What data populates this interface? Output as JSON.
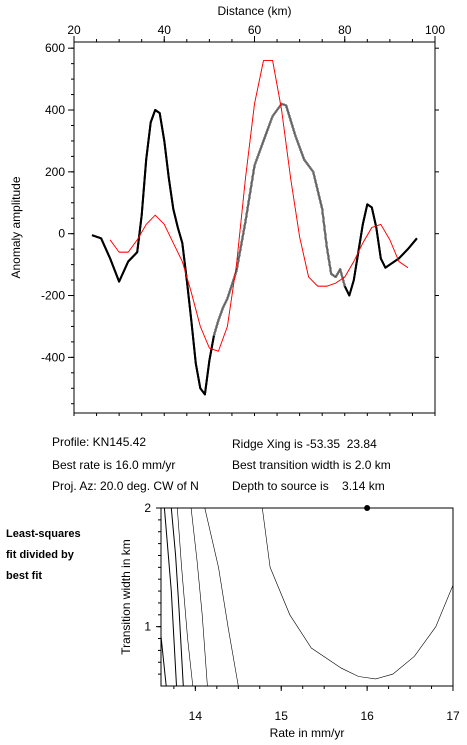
{
  "chart_data": [
    {
      "type": "line",
      "title": "",
      "xlabel": "Distance (km)",
      "ylabel": "Anomaly amplitude",
      "xlim": [
        20,
        100
      ],
      "ylim": [
        -580,
        620
      ],
      "xticks": [
        "20",
        "40",
        "60",
        "80",
        "100"
      ],
      "yticks": [
        "600",
        "400",
        "200",
        "0",
        "-200",
        "-400"
      ],
      "series": [
        {
          "role": "observed-thick",
          "color": "#000000",
          "x": [
            24,
            26,
            28,
            30,
            32,
            34,
            35,
            36,
            37,
            38,
            39,
            40,
            41,
            42,
            43,
            44,
            45,
            46,
            47,
            48,
            49,
            50,
            51,
            52,
            53,
            54,
            56,
            58,
            60,
            62,
            63,
            64,
            66,
            67,
            69,
            71,
            73,
            75,
            76,
            77,
            78,
            79,
            80,
            81,
            82,
            83,
            84,
            85,
            86,
            87,
            88,
            89,
            90,
            92,
            94,
            96
          ],
          "y": [
            -5,
            -15,
            -80,
            -155,
            -90,
            -60,
            60,
            240,
            360,
            400,
            390,
            300,
            180,
            80,
            20,
            -30,
            -150,
            -280,
            -420,
            -500,
            -520,
            -410,
            -330,
            -280,
            -240,
            -210,
            -120,
            40,
            220,
            300,
            340,
            380,
            420,
            415,
            320,
            240,
            200,
            80,
            -40,
            -130,
            -140,
            -115,
            -170,
            -200,
            -150,
            -60,
            30,
            95,
            85,
            20,
            -80,
            -110,
            -100,
            -80,
            -50,
            -15
          ]
        },
        {
          "role": "observed-thin-segment",
          "color": "#000000",
          "x": [
            51,
            52,
            53,
            54,
            56,
            58,
            60,
            62,
            63,
            64,
            66,
            67,
            69,
            71,
            73,
            75,
            76,
            77,
            78,
            79,
            80
          ],
          "y": [
            -330,
            -280,
            -240,
            -210,
            -120,
            40,
            220,
            300,
            340,
            380,
            420,
            415,
            320,
            240,
            200,
            80,
            -40,
            -130,
            -140,
            -115,
            -170
          ]
        },
        {
          "role": "model",
          "color": "#ff0000",
          "x": [
            28,
            30,
            32,
            34,
            36,
            38,
            40,
            42,
            44,
            46,
            48,
            50,
            52,
            54,
            56,
            58,
            60,
            62,
            64,
            66,
            68,
            70,
            72,
            74,
            76,
            78,
            80,
            82,
            84,
            86,
            88,
            90,
            92,
            94
          ],
          "y": [
            -20,
            -60,
            -60,
            -20,
            30,
            60,
            30,
            -30,
            -90,
            -190,
            -300,
            -370,
            -380,
            -300,
            -100,
            180,
            420,
            560,
            560,
            400,
            180,
            -10,
            -140,
            -170,
            -170,
            -160,
            -140,
            -90,
            -30,
            20,
            30,
            -20,
            -90,
            -110
          ]
        }
      ]
    },
    {
      "type": "contour",
      "title": "",
      "xlabel": "Rate in mm/yr",
      "ylabel": "Transition width in km",
      "xlim": [
        13.6,
        17
      ],
      "ylim": [
        0.5,
        2
      ],
      "xticks": [
        "14",
        "15",
        "16",
        "17"
      ],
      "yticks": [
        "1",
        "2"
      ],
      "best_fit": {
        "x": 16.0,
        "y": 2.0
      },
      "contours": [
        {
          "x": [
            13.6,
            13.66
          ],
          "y": [
            0.92,
            0.5
          ]
        },
        {
          "x": [
            13.64,
            13.72,
            13.78
          ],
          "y": [
            2.0,
            1.3,
            0.5
          ]
        },
        {
          "x": [
            13.72,
            13.77,
            13.81,
            13.86
          ],
          "y": [
            2.0,
            1.6,
            1.15,
            0.5
          ]
        },
        {
          "x": [
            13.79,
            13.84,
            13.91,
            13.97
          ],
          "y": [
            2.0,
            1.5,
            0.9,
            0.5
          ]
        },
        {
          "x": [
            13.95,
            14.02,
            14.08,
            14.14
          ],
          "y": [
            2.0,
            1.55,
            1.1,
            0.5
          ]
        },
        {
          "x": [
            14.11,
            14.27,
            14.38,
            14.5
          ],
          "y": [
            2.0,
            1.5,
            1.0,
            0.5
          ]
        },
        {
          "x": [
            14.78,
            14.87,
            15.1,
            15.35,
            15.7,
            15.9,
            16.1,
            16.3,
            16.55,
            16.8,
            17.0
          ],
          "y": [
            2.0,
            1.5,
            1.1,
            0.82,
            0.65,
            0.58,
            0.56,
            0.6,
            0.75,
            1.0,
            1.35
          ]
        }
      ]
    }
  ],
  "info": {
    "profile": "Profile: KN145.42",
    "best_rate": "Best rate is 16.0 mm/yr",
    "proj_az": "Proj. Az: 20.0 deg. CW of N",
    "ridge_xing": "Ridge Xing is -53.35  23.84",
    "best_transition": "Best transition width is 2.0 km",
    "depth": "Depth to source is    3.14 km"
  },
  "side_label": [
    "Least-squares",
    "fit divided by",
    "best fit"
  ]
}
